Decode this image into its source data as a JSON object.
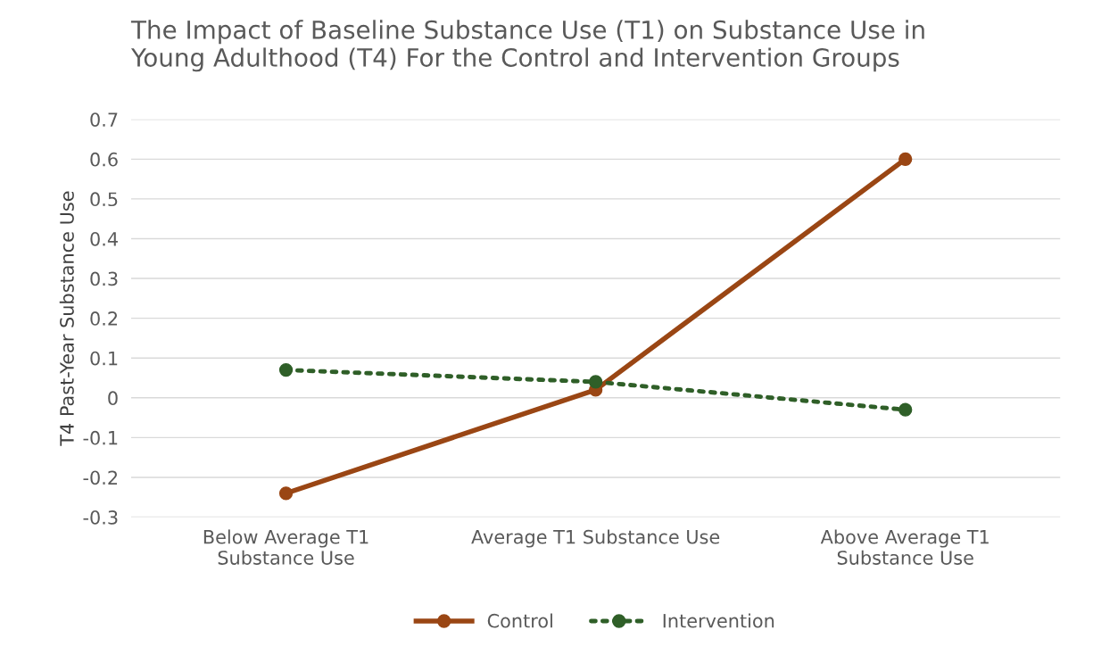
{
  "chart_data": {
    "type": "line",
    "title": "The Impact of Baseline Substance Use (T1) on Substance Use in\nYoung Adulthood (T4) For the Control and Intervention Groups",
    "ylabel": "T4 Past-Year Substance Use",
    "categories": [
      "Below Average T1\nSubstance Use",
      "Average T1 Substance Use",
      "Above Average T1\nSubstance Use"
    ],
    "series": [
      {
        "name": "Control",
        "color": "#9a4614",
        "values": [
          -0.24,
          0.02,
          0.6
        ],
        "line_style": "solid"
      },
      {
        "name": "Intervention",
        "color": "#2f5f28",
        "values": [
          0.07,
          0.04,
          -0.03
        ],
        "line_style": "dotted"
      }
    ],
    "ylim": [
      -0.3,
      0.7
    ],
    "yticks": [
      {
        "value": -0.3,
        "label": "-0.3"
      },
      {
        "value": -0.2,
        "label": "-0.2"
      },
      {
        "value": -0.1,
        "label": "-0.1"
      },
      0,
      0.1,
      0.2,
      0.3,
      0.4,
      0.5,
      0.6,
      0.7
    ],
    "grid": "y",
    "legend": "bottom",
    "marker": "circle"
  }
}
